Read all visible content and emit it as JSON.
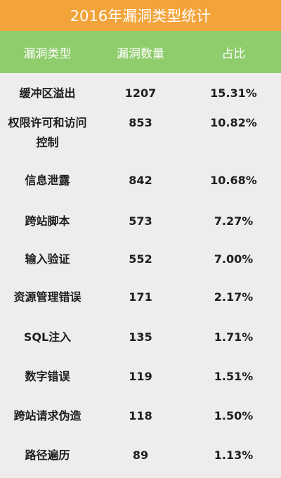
{
  "title": "2016年漏洞类型统计",
  "headers": {
    "type": "漏洞类型",
    "count": "漏洞数量",
    "ratio": "占比"
  },
  "rows": [
    {
      "type": "缓冲区溢出",
      "count": "1207",
      "ratio": "15.31%"
    },
    {
      "type": "权限许可和访问控制",
      "count": "853",
      "ratio": "10.82%"
    },
    {
      "type": "信息泄露",
      "count": "842",
      "ratio": "10.68%"
    },
    {
      "type": "跨站脚本",
      "count": "573",
      "ratio": "7.27%"
    },
    {
      "type": "输入验证",
      "count": "552",
      "ratio": "7.00%"
    },
    {
      "type": "资源管理错误",
      "count": "171",
      "ratio": "2.17%"
    },
    {
      "type": "SQL注入",
      "count": "135",
      "ratio": "1.71%"
    },
    {
      "type": "数字错误",
      "count": "119",
      "ratio": "1.51%"
    },
    {
      "type": "跨站请求伪造",
      "count": "118",
      "ratio": "1.50%"
    },
    {
      "type": "路径遍历",
      "count": "89",
      "ratio": "1.13%"
    }
  ],
  "colors": {
    "title_bg": "#f2a33a",
    "header_bg": "#8fcd6c",
    "body_bg": "#ededed"
  }
}
